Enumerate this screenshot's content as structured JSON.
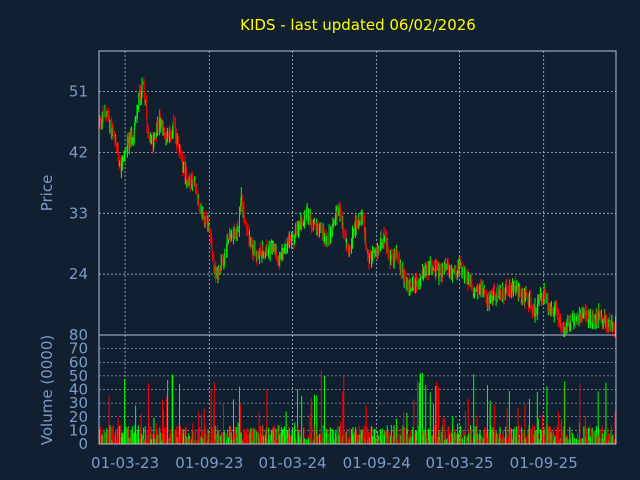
{
  "chart_data": {
    "type": "candlestick",
    "title": "KIDS - last updated 06/02/2026",
    "colors": {
      "background": "#112030",
      "axis": "#b0c4de",
      "grid": "#c8d0e0",
      "title": "#ffff00",
      "up": "#00ff00",
      "down": "#ff0000",
      "label": "#7b9cc8"
    },
    "x": {
      "tick_labels": [
        "01-03-23",
        "01-09-23",
        "01-03-24",
        "01-09-24",
        "01-03-25",
        "01-09-25"
      ],
      "start": "2023-01-03",
      "end": "2026-02-06"
    },
    "price": {
      "ylabel": "Price",
      "ylim": [
        15,
        57
      ],
      "ticks": [
        24,
        33,
        42,
        51
      ],
      "series": [
        [
          "2023-01-03",
          46.5
        ],
        [
          "2023-01-20",
          48
        ],
        [
          "2023-02-05",
          44
        ],
        [
          "2023-02-20",
          40
        ],
        [
          "2023-03-05",
          43
        ],
        [
          "2023-03-20",
          45
        ],
        [
          "2023-04-01",
          50
        ],
        [
          "2023-04-10",
          52
        ],
        [
          "2023-04-20",
          45
        ],
        [
          "2023-05-01",
          43
        ],
        [
          "2023-05-15",
          47
        ],
        [
          "2023-06-01",
          44
        ],
        [
          "2023-06-15",
          46
        ],
        [
          "2023-07-01",
          41
        ],
        [
          "2023-07-15",
          38
        ],
        [
          "2023-08-01",
          37
        ],
        [
          "2023-08-15",
          33
        ],
        [
          "2023-09-01",
          31
        ],
        [
          "2023-09-10",
          25
        ],
        [
          "2023-09-20",
          24
        ],
        [
          "2023-10-01",
          26
        ],
        [
          "2023-10-15",
          30
        ],
        [
          "2023-11-01",
          30
        ],
        [
          "2023-11-10",
          35
        ],
        [
          "2023-11-20",
          31
        ],
        [
          "2023-12-01",
          28
        ],
        [
          "2023-12-15",
          27
        ],
        [
          "2024-01-01",
          27
        ],
        [
          "2024-01-15",
          28
        ],
        [
          "2024-02-01",
          26
        ],
        [
          "2024-02-15",
          28
        ],
        [
          "2024-03-01",
          29
        ],
        [
          "2024-03-15",
          31
        ],
        [
          "2024-04-01",
          33
        ],
        [
          "2024-04-15",
          31
        ],
        [
          "2024-05-01",
          31
        ],
        [
          "2024-05-15",
          29
        ],
        [
          "2024-06-01",
          32
        ],
        [
          "2024-06-10",
          34
        ],
        [
          "2024-06-20",
          31
        ],
        [
          "2024-07-01",
          27
        ],
        [
          "2024-07-15",
          31
        ],
        [
          "2024-08-01",
          32
        ],
        [
          "2024-08-15",
          26
        ],
        [
          "2024-09-01",
          27
        ],
        [
          "2024-09-15",
          30
        ],
        [
          "2024-10-01",
          26
        ],
        [
          "2024-10-15",
          27
        ],
        [
          "2024-11-01",
          23
        ],
        [
          "2024-11-15",
          22
        ],
        [
          "2024-12-01",
          23
        ],
        [
          "2024-12-15",
          25
        ],
        [
          "2025-01-01",
          25
        ],
        [
          "2025-01-15",
          24
        ],
        [
          "2025-02-01",
          25
        ],
        [
          "2025-02-15",
          24
        ],
        [
          "2025-03-01",
          25
        ],
        [
          "2025-03-15",
          24
        ],
        [
          "2025-04-01",
          21
        ],
        [
          "2025-04-15",
          22
        ],
        [
          "2025-05-01",
          20
        ],
        [
          "2025-05-15",
          21
        ],
        [
          "2025-06-01",
          21
        ],
        [
          "2025-06-15",
          22
        ],
        [
          "2025-07-01",
          22
        ],
        [
          "2025-07-15",
          21
        ],
        [
          "2025-08-01",
          20
        ],
        [
          "2025-08-10",
          18
        ],
        [
          "2025-08-20",
          20
        ],
        [
          "2025-09-01",
          21
        ],
        [
          "2025-09-15",
          19
        ],
        [
          "2025-10-01",
          18
        ],
        [
          "2025-10-15",
          16
        ],
        [
          "2025-11-01",
          17
        ],
        [
          "2025-11-15",
          18
        ],
        [
          "2025-12-01",
          18
        ],
        [
          "2025-12-15",
          17
        ],
        [
          "2026-01-01",
          18
        ],
        [
          "2026-01-15",
          17
        ],
        [
          "2026-02-06",
          16
        ]
      ]
    },
    "volume": {
      "ylabel": "Volume (0000)",
      "ylim": [
        0,
        80
      ],
      "ticks": [
        0,
        10,
        20,
        30,
        40,
        50,
        60,
        70,
        80
      ]
    }
  }
}
